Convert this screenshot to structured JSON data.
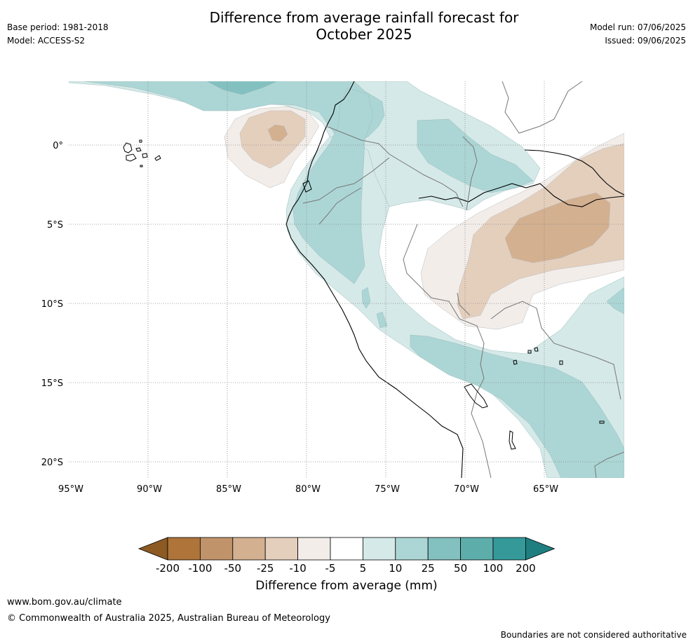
{
  "title_line1": "Difference from average rainfall forecast for",
  "title_line2": "October 2025",
  "base_period": "Base period: 1981-2018",
  "model": "Model: ACCESS-S2",
  "model_run": "Model run: 07/06/2025",
  "issued": "Issued: 09/06/2025",
  "lat_labels": [
    "0°",
    "5°S",
    "10°S",
    "15°S",
    "20°S"
  ],
  "lon_labels": [
    "95°W",
    "90°W",
    "85°W",
    "80°W",
    "75°W",
    "70°W",
    "65°W"
  ],
  "colorbar": {
    "title": "Difference from average (mm)",
    "tick_labels": [
      "-200",
      "-100",
      "-50",
      "-25",
      "-10",
      "-5",
      "5",
      "10",
      "25",
      "50",
      "100",
      "200"
    ],
    "colors": [
      "#8c5a22",
      "#ae743a",
      "#c1936a",
      "#d3b090",
      "#e4cfbd",
      "#f2ede9",
      "#ffffff",
      "#d5e9e8",
      "#acd6d5",
      "#83c1c0",
      "#5dadab",
      "#35999a",
      "#1f7f80"
    ]
  },
  "footer_url": "www.bom.gov.au/climate",
  "footer_copyright": "© Commonwealth of Australia 2025, Australian Bureau of Meteorology",
  "boundaries_note": "Boundaries are not considered authoritative"
}
